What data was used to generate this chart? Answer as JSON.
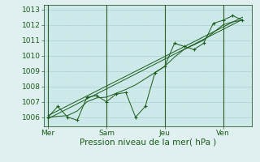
{
  "plot_bg_color": "#cce8e8",
  "fig_bg_color": "#e0f0f0",
  "outer_bg_color": "#e8f4f4",
  "grid_major_color": "#b0d4d4",
  "grid_minor_color": "#d4eaea",
  "line_color": "#1a5c1a",
  "marker_color": "#1a5c1a",
  "vline_color": "#2d5c2d",
  "xlabel": "Pression niveau de la mer( hPa )",
  "xlabel_fontsize": 7.5,
  "tick_fontsize": 6.5,
  "ylim": [
    1005.4,
    1013.3
  ],
  "yticks": [
    1006,
    1007,
    1008,
    1009,
    1010,
    1011,
    1012,
    1013
  ],
  "day_labels": [
    "Mer",
    "Sam",
    "Jeu",
    "Ven"
  ],
  "day_positions": [
    0,
    3,
    6,
    9
  ],
  "xlim": [
    -0.2,
    10.5
  ],
  "series1_x": [
    0,
    0.5,
    1,
    1.5,
    2,
    2.5,
    3,
    3.5,
    4,
    4.5,
    5,
    5.5,
    6,
    6.5,
    7,
    7.5,
    8,
    8.5,
    9,
    9.5,
    10
  ],
  "series1_y": [
    1006.0,
    1006.7,
    1006.0,
    1005.8,
    1007.3,
    1007.4,
    1007.0,
    1007.5,
    1007.6,
    1006.0,
    1006.7,
    1008.9,
    1009.3,
    1010.8,
    1010.6,
    1010.4,
    1010.8,
    1012.1,
    1012.3,
    1012.6,
    1012.3
  ],
  "series2_x": [
    0,
    0.5,
    1,
    1.5,
    2,
    2.5,
    3,
    3.5,
    4,
    4.5,
    5,
    5.5,
    6,
    6.5,
    7,
    7.5,
    8,
    8.5,
    9,
    9.5,
    10
  ],
  "series2_y": [
    1006.0,
    1006.05,
    1006.1,
    1006.4,
    1007.0,
    1007.25,
    1007.3,
    1007.55,
    1007.8,
    1008.1,
    1008.5,
    1008.9,
    1009.3,
    1009.9,
    1010.4,
    1010.7,
    1011.0,
    1011.5,
    1012.0,
    1012.2,
    1012.3
  ],
  "series3_x": [
    0,
    10
  ],
  "series3_y": [
    1005.9,
    1012.35
  ],
  "series4_x": [
    0,
    10
  ],
  "series4_y": [
    1006.1,
    1012.5
  ]
}
